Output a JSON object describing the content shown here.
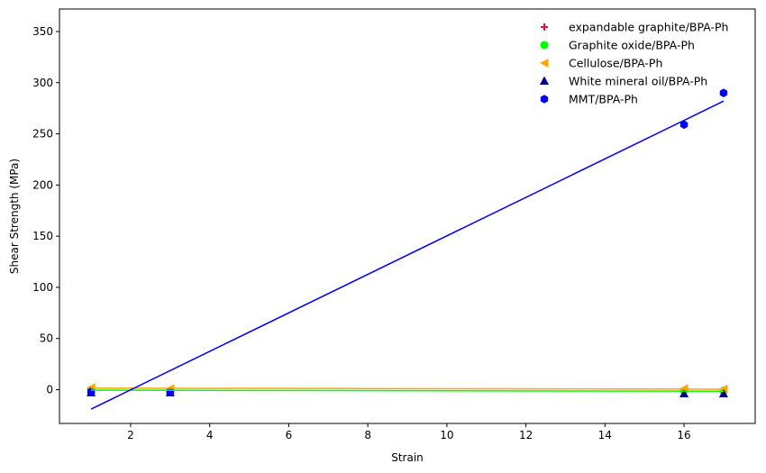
{
  "chart_data": {
    "type": "scatter",
    "xlabel": "Strain",
    "ylabel": "Shear Strength (MPa)",
    "xlim": [
      0.2,
      17.8
    ],
    "ylim": [
      -33,
      372
    ],
    "xticks": [
      2,
      4,
      6,
      8,
      10,
      12,
      14,
      16
    ],
    "yticks": [
      0,
      50,
      100,
      150,
      200,
      250,
      300,
      350
    ],
    "grid": false,
    "legend_position": "top-right",
    "series": [
      {
        "name": "expandable graphite/BPA-Ph",
        "color": "#dc143c",
        "marker": "plus",
        "points": [
          [
            1,
            -1
          ],
          [
            3,
            -1
          ],
          [
            16,
            -2
          ],
          [
            17,
            -2
          ]
        ],
        "fit_line": null
      },
      {
        "name": "Graphite oxide/BPA-Ph",
        "color": "#00ff00",
        "marker": "circle",
        "points": [
          [
            1,
            0
          ],
          [
            3,
            -1
          ],
          [
            16,
            -1
          ],
          [
            17,
            -1
          ]
        ],
        "fit_line": [
          [
            1,
            -0.5
          ],
          [
            17,
            -1.5
          ]
        ]
      },
      {
        "name": "Cellulose/BPA-Ph",
        "color": "#ffa500",
        "marker": "triangle-left",
        "points": [
          [
            1,
            2
          ],
          [
            3,
            1
          ],
          [
            16,
            1
          ],
          [
            17,
            0.5
          ]
        ],
        "fit_line": [
          [
            1,
            1.5
          ],
          [
            17,
            0.5
          ]
        ]
      },
      {
        "name": "White mineral oil/BPA-Ph",
        "color": "#00008b",
        "marker": "triangle-up",
        "points": [
          [
            1,
            -3
          ],
          [
            3,
            -3
          ],
          [
            16,
            -4
          ],
          [
            17,
            -4
          ]
        ],
        "fit_line": null
      },
      {
        "name": "MMT/BPA-Ph",
        "color": "#0000ff",
        "marker": "hexagon",
        "points": [
          [
            1,
            -2
          ],
          [
            3,
            -2
          ],
          [
            16,
            259
          ],
          [
            17,
            290
          ]
        ],
        "fit_line": [
          [
            1,
            -19
          ],
          [
            17,
            282
          ]
        ]
      }
    ]
  }
}
